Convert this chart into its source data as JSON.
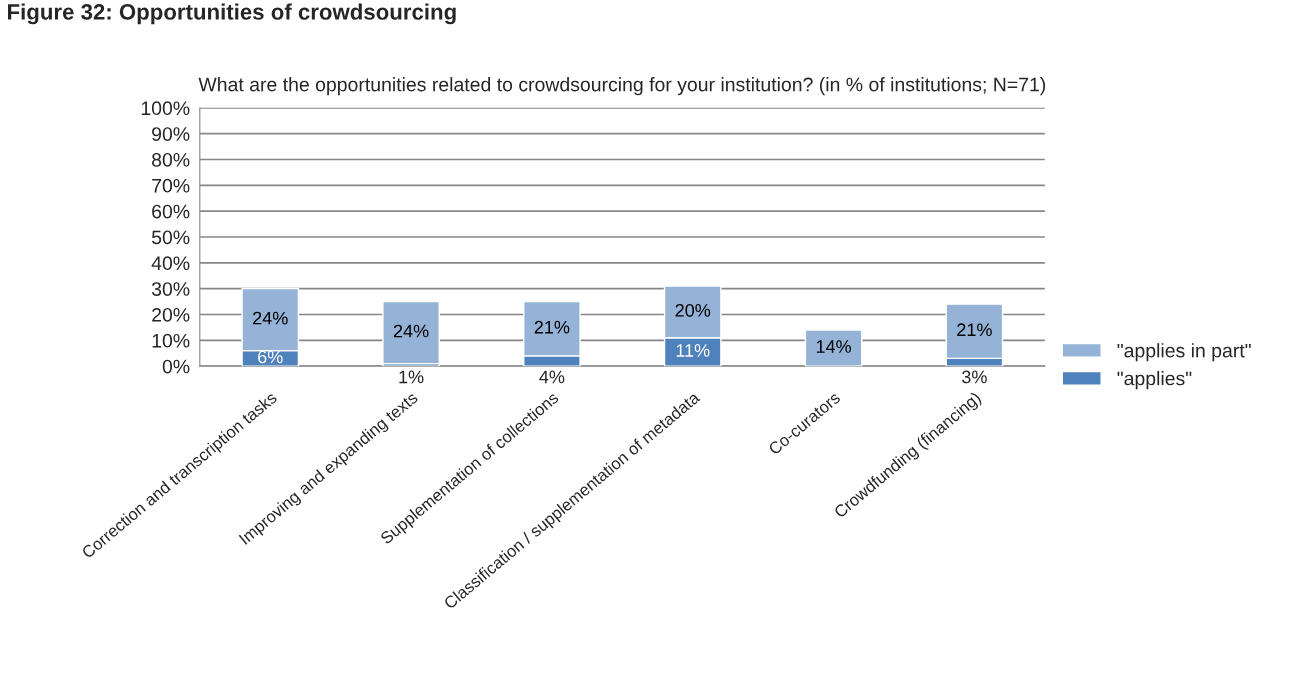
{
  "chart_data": {
    "type": "bar",
    "stacked": true,
    "annotations": [
      "Figure 32: Opportunities of crowdsourcing"
    ],
    "title": "What are the opportunities related to crowdsourcing for your institution?",
    "subtitle": "(in % of institutions; N=71)",
    "categories": [
      "Correction and transcription tasks",
      "Improving and expanding texts",
      "Supplementation of collections",
      "Classification / supplementation of metadata",
      "Co-curators",
      "Crowdfunding (financing)"
    ],
    "series": [
      {
        "name": "\"applies\"",
        "color": "#4f81bd",
        "values": [
          6,
          1,
          4,
          11,
          0,
          3
        ],
        "value_labels": [
          "6%",
          "1%",
          "4%",
          "11%",
          null,
          "3%"
        ]
      },
      {
        "name": "\"applies in part\"",
        "color": "#95b3d7",
        "values": [
          24,
          24,
          21,
          20,
          14,
          21
        ],
        "value_labels": [
          "24%",
          "24%",
          "21%",
          "20%",
          "14%",
          "21%"
        ]
      }
    ],
    "ylim": [
      0,
      100
    ],
    "yticks": [
      {
        "value": 0,
        "label": "0%"
      },
      {
        "value": 10,
        "label": "10%"
      },
      {
        "value": 20,
        "label": "20%"
      },
      {
        "value": 30,
        "label": "30%"
      },
      {
        "value": 40,
        "label": "40%"
      },
      {
        "value": 50,
        "label": "50%"
      },
      {
        "value": 60,
        "label": "60%"
      },
      {
        "value": 70,
        "label": "70%"
      },
      {
        "value": 80,
        "label": "80%"
      },
      {
        "value": 90,
        "label": "90%"
      },
      {
        "value": 100,
        "label": "100%"
      }
    ],
    "grid": "y",
    "legend": "right"
  }
}
